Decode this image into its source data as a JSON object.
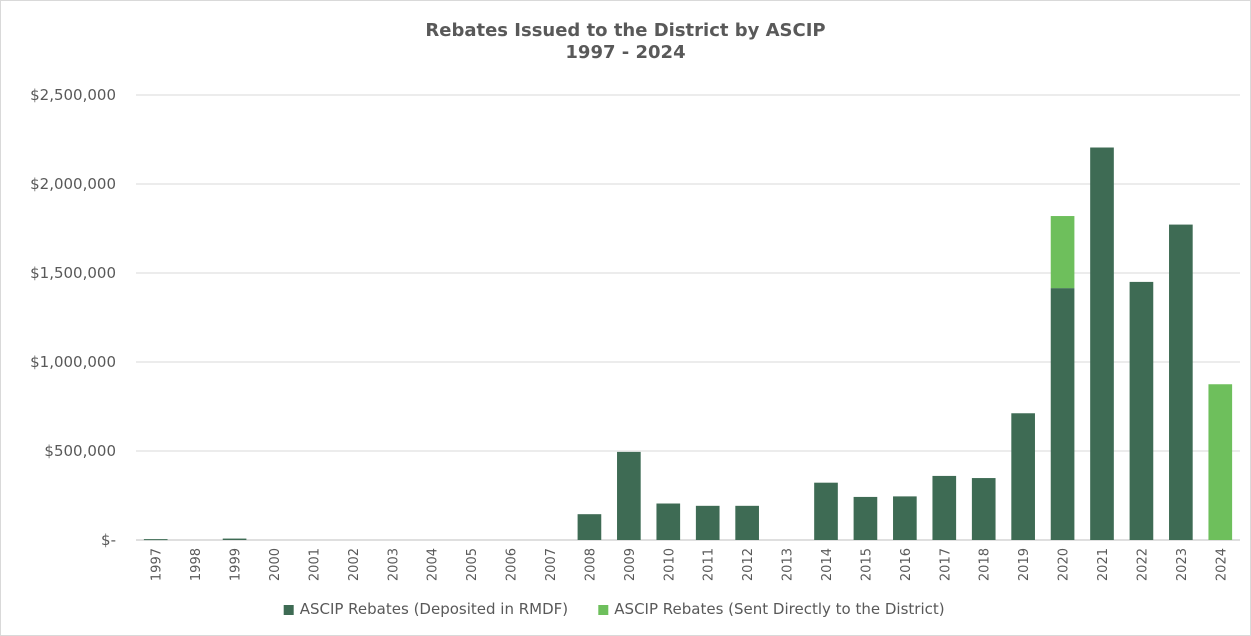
{
  "chart_data": {
    "type": "bar",
    "stacked": true,
    "title": "Rebates Issued to the District by ASCIP",
    "subtitle": "1997 - 2024",
    "categories": [
      "1997",
      "1998",
      "1999",
      "2000",
      "2001",
      "2002",
      "2003",
      "2004",
      "2005",
      "2006",
      "2007",
      "2008",
      "2009",
      "2010",
      "2011",
      "2012",
      "2013",
      "2014",
      "2015",
      "2016",
      "2017",
      "2018",
      "2019",
      "2020",
      "2021",
      "2022",
      "2023",
      "2024"
    ],
    "series": [
      {
        "name": "ASCIP Rebates (Deposited in RMDF)",
        "color": "#3e6b54",
        "values": [
          5000,
          0,
          8000,
          0,
          0,
          0,
          0,
          0,
          0,
          0,
          0,
          145000,
          495000,
          205000,
          192000,
          192000,
          0,
          322000,
          242000,
          245000,
          360000,
          348000,
          712000,
          1415000,
          2205000,
          1450000,
          1772000,
          0
        ]
      },
      {
        "name": "ASCIP Rebates (Sent Directly to the District)",
        "color": "#6ebf5c",
        "values": [
          0,
          0,
          0,
          0,
          0,
          0,
          0,
          0,
          0,
          0,
          0,
          0,
          0,
          0,
          0,
          0,
          0,
          0,
          0,
          0,
          0,
          0,
          0,
          405000,
          0,
          0,
          0,
          875000
        ]
      }
    ],
    "y_ticks": [
      "$-",
      "$500,000",
      "$1,000,000",
      "$1,500,000",
      "$2,000,000",
      "$2,500,000"
    ],
    "ylim": [
      0,
      2500000
    ],
    "grid": true,
    "legend_position": "bottom"
  }
}
